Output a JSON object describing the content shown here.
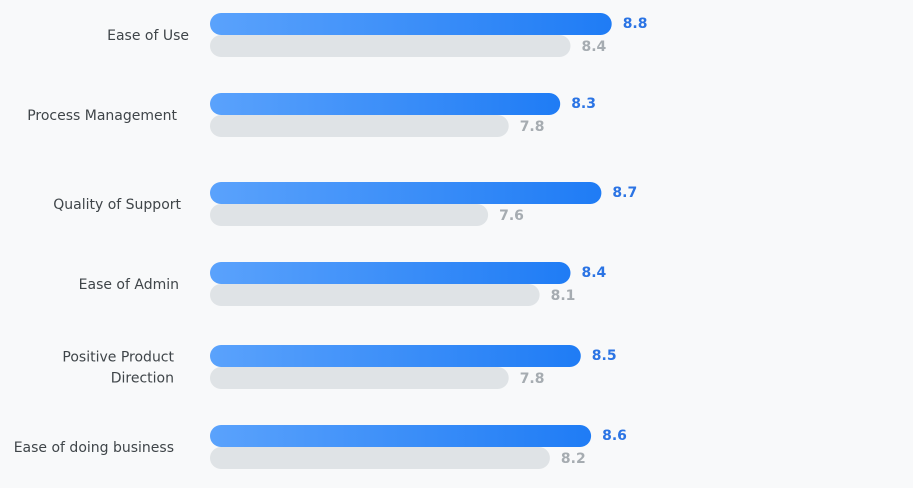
{
  "colors": {
    "primary_start": "#5aa2fc",
    "primary_end": "#1f7cf5",
    "secondary": "#dfe3e6",
    "primary_text": "#2b74e4",
    "secondary_text": "#a6acb1"
  },
  "chart_data": {
    "type": "bar",
    "orientation": "horizontal",
    "categories": [
      [
        "Ease of Use"
      ],
      [
        "Process Management"
      ],
      [
        "Quality of Support"
      ],
      [
        "Ease of Admin"
      ],
      [
        "Positive Product",
        "Direction"
      ],
      [
        "Ease of doing business"
      ]
    ],
    "series": [
      {
        "name": "primary",
        "values": [
          8.8,
          8.3,
          8.7,
          8.4,
          8.5,
          8.6
        ],
        "labels": [
          "8.8",
          "8.3",
          "8.7",
          "8.4",
          "8.5",
          "8.6"
        ]
      },
      {
        "name": "secondary",
        "values": [
          8.4,
          7.8,
          7.6,
          8.1,
          7.8,
          8.2
        ],
        "labels": [
          "8.4",
          "7.8",
          "7.6",
          "8.1",
          "7.8",
          "8.2"
        ]
      }
    ],
    "xlim": [
      4.9,
      8.8
    ],
    "grid": false,
    "legend": "none"
  }
}
